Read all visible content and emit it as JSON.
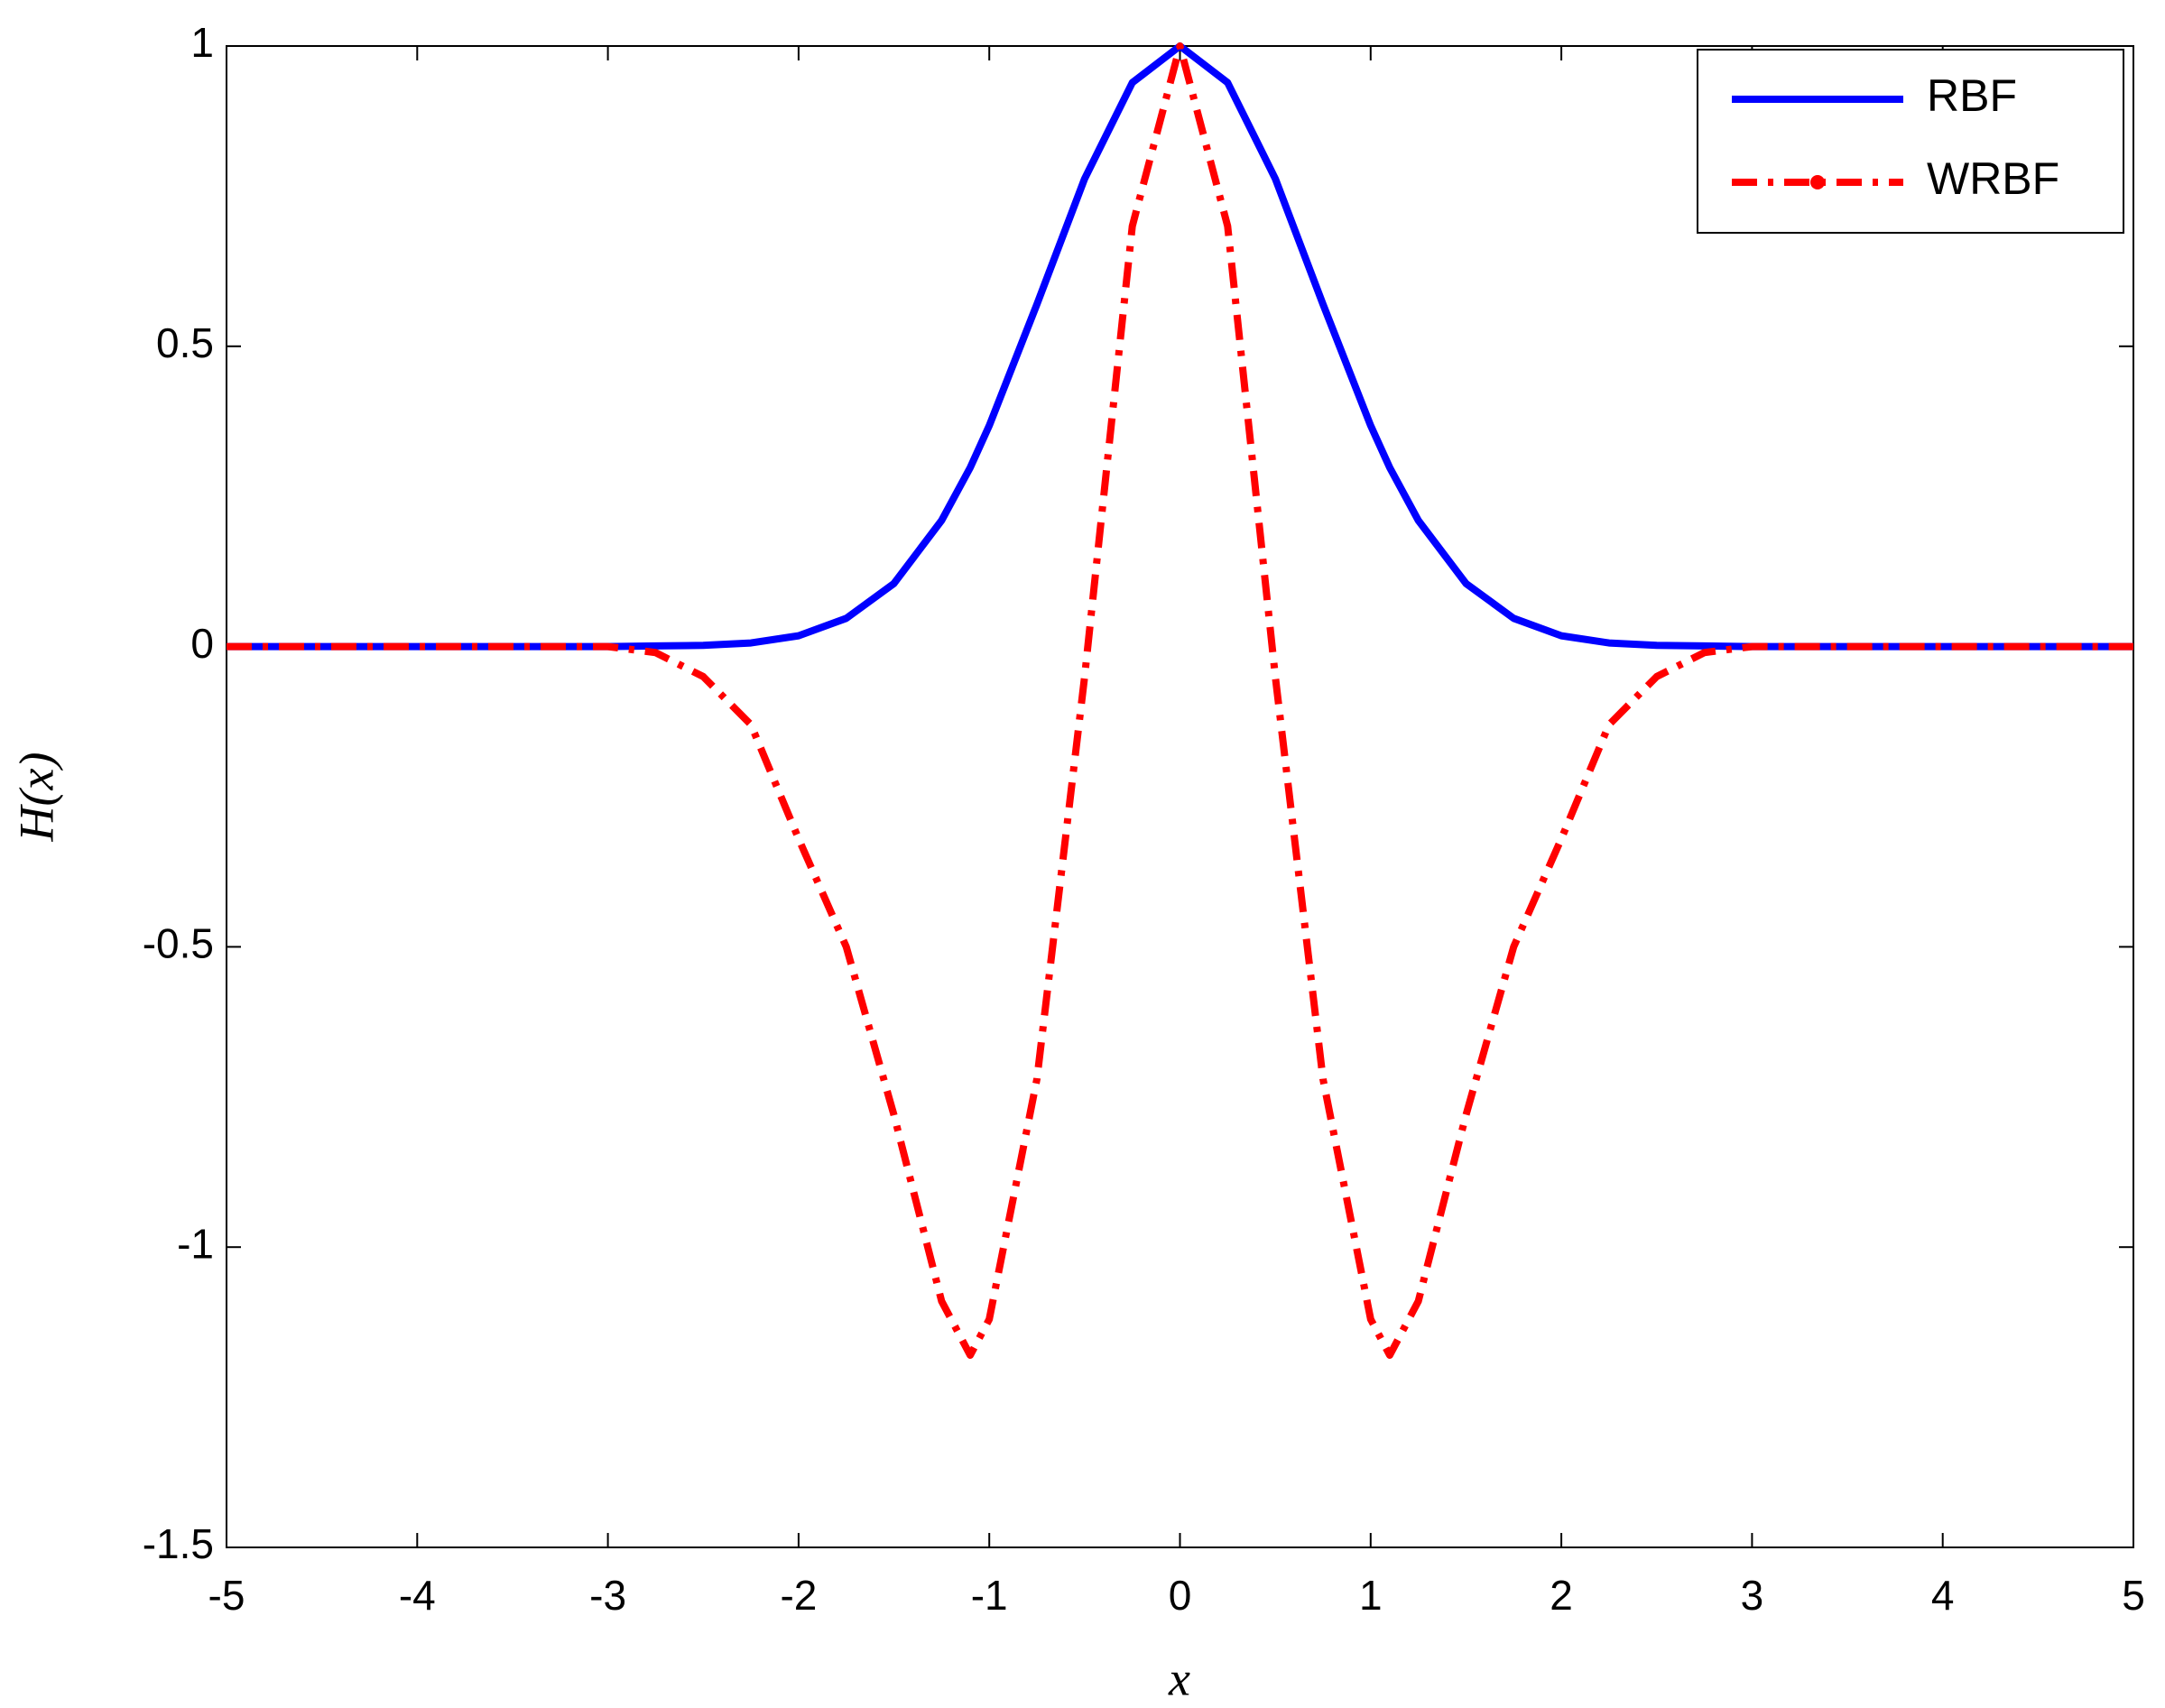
{
  "chart_data": {
    "type": "line",
    "xlabel": "x",
    "ylabel": "H(x)",
    "x": [
      -5,
      -4,
      -3,
      -2.75,
      -2.5,
      -2.25,
      -2,
      -1.75,
      -1.5,
      -1.25,
      -1.1,
      -1,
      -0.75,
      -0.5,
      -0.25,
      0,
      0.25,
      0.5,
      0.75,
      1,
      1.1,
      1.25,
      1.5,
      1.75,
      2,
      2.25,
      2.5,
      2.75,
      3,
      4,
      5
    ],
    "series": [
      {
        "name": "RBF",
        "color": "#0000ff",
        "style": "solid",
        "values": [
          0,
          0,
          0,
          0.001,
          0.002,
          0.006,
          0.018,
          0.047,
          0.105,
          0.21,
          0.298,
          0.368,
          0.57,
          0.779,
          0.939,
          1,
          0.939,
          0.779,
          0.57,
          0.368,
          0.298,
          0.21,
          0.105,
          0.047,
          0.018,
          0.006,
          0.002,
          0.001,
          0,
          0,
          0
        ]
      },
      {
        "name": "WRBF",
        "color": "#ff0000",
        "style": "dashdot",
        "values": [
          0,
          0,
          0,
          -0.01,
          -0.05,
          -0.13,
          -0.32,
          -0.5,
          -0.78,
          -1.09,
          -1.18,
          -1.12,
          -0.72,
          -0.05,
          0.7,
          1,
          0.7,
          -0.05,
          -0.72,
          -1.12,
          -1.18,
          -1.09,
          -0.78,
          -0.5,
          -0.32,
          -0.13,
          -0.05,
          -0.01,
          0,
          0,
          0
        ]
      }
    ],
    "xlim": [
      -5,
      5
    ],
    "xticks": [
      -5,
      -4,
      -3,
      -2,
      -1,
      0,
      1,
      2,
      3,
      4,
      5
    ],
    "ylim": [
      -1.5,
      1
    ],
    "yticks": [
      -1.5,
      -1,
      -0.5,
      0,
      0.5,
      1
    ],
    "legend": "upper right",
    "grid": false
  }
}
